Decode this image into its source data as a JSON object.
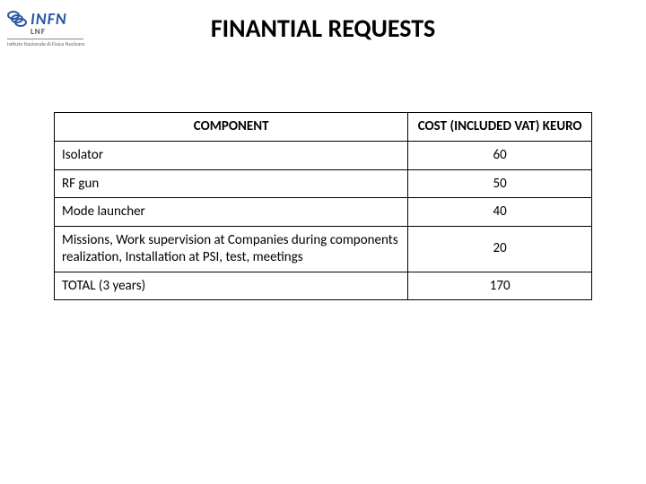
{
  "logo": {
    "main": "INFN",
    "sub": "LNF",
    "tagline": "Istituto Nazionale di Fisica Nucleare"
  },
  "title": "FINANTIAL REQUESTS",
  "table": {
    "headers": {
      "component": "COMPONENT",
      "cost": "COST (INCLUDED VAT) KEURO"
    },
    "rows": [
      {
        "component": "Isolator",
        "cost": "60"
      },
      {
        "component": "RF gun",
        "cost": "50"
      },
      {
        "component": "Mode launcher",
        "cost": "40"
      },
      {
        "component": "Missions, Work supervision at Companies during components realization, Installation at PSI, test, meetings",
        "cost": "20"
      },
      {
        "component": "TOTAL (3 years)",
        "cost": "170"
      }
    ],
    "styling": {
      "border_color": "#000000",
      "border_width": 1.5,
      "header_fontsize": 15,
      "cell_fontsize": 15,
      "component_col_width": 395,
      "cost_col_width": 205,
      "component_align": "left",
      "cost_align": "center",
      "header_align": "center",
      "background_color": "#ffffff"
    }
  },
  "colors": {
    "title": "#000000",
    "logo_blue": "#2956a3",
    "background": "#ffffff",
    "border": "#000000"
  },
  "typography": {
    "title_fontsize": 28,
    "title_weight": "bold",
    "font_family": "Calibri"
  }
}
